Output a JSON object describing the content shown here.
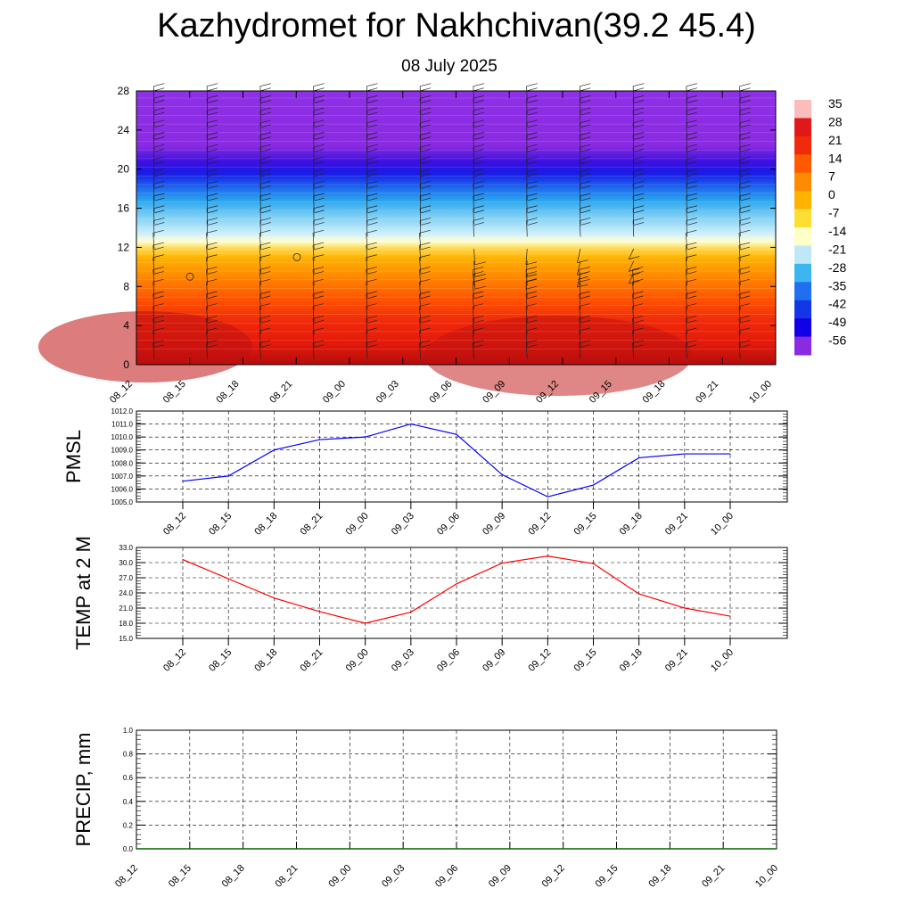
{
  "title": "Kazhydromet for Nakhchivan(39.2 45.4)",
  "subtitle": "08 July 2025",
  "chart_data": [
    {
      "type": "heatmap",
      "description_of_axes": "time vs level",
      "x_ticks": [
        "08_12",
        "08_15",
        "08_18",
        "08_21",
        "09_00",
        "09_03",
        "09_06",
        "09_09",
        "09_12",
        "09_15",
        "09_18",
        "09_21",
        "10_00"
      ],
      "y_ticks": [
        0,
        4,
        8,
        12,
        16,
        20,
        24,
        28
      ],
      "ylim": [
        0,
        28
      ],
      "colorbar_labels": [
        "35",
        "28",
        "21",
        "14",
        "7",
        "0",
        "-7",
        "-14",
        "-21",
        "-28",
        "-35",
        "-42",
        "-49",
        "-56"
      ],
      "colorbar_colors": [
        "#fbbcbc",
        "#e01818",
        "#f02a0a",
        "#ff5a00",
        "#ff8c00",
        "#ffb300",
        "#ffde33",
        "#ffffc8",
        "#bfe8f7",
        "#3cb6f0",
        "#1f6fef",
        "#1436e8",
        "#1200e8",
        "#8a2be2"
      ],
      "colorbar_values": [
        35,
        28,
        21,
        14,
        7,
        0,
        -7,
        -14,
        -21,
        -28,
        -35,
        -42,
        -49,
        -56
      ],
      "wind_barbs": "present"
    },
    {
      "type": "line",
      "ylabel": "PMSL",
      "x": [
        "08_12",
        "08_15",
        "08_18",
        "08_21",
        "09_00",
        "09_03",
        "09_06",
        "09_09",
        "09_12",
        "09_15",
        "09_18",
        "09_21",
        "10_00"
      ],
      "y_ticks": [
        "1005.0",
        "1006.0",
        "1007.0",
        "1008.0",
        "1009.0",
        "1010.0",
        "1011.0",
        "1012.0"
      ],
      "ylim": [
        1005,
        1012
      ],
      "series": [
        {
          "values": [
            1006.6,
            1007.0,
            1009.0,
            1009.8,
            1010.0,
            1011.0,
            1010.2,
            1007.1,
            1005.4,
            1006.3,
            1008.4,
            1008.7,
            1008.7
          ],
          "color": "#0000ff"
        }
      ]
    },
    {
      "type": "line",
      "ylabel": "TEMP at 2 M",
      "x": [
        "08_12",
        "08_15",
        "08_18",
        "08_21",
        "09_00",
        "09_03",
        "09_06",
        "09_09",
        "09_12",
        "09_15",
        "09_18",
        "09_21",
        "10_00"
      ],
      "y_ticks": [
        "15.0",
        "18.0",
        "21.0",
        "24.0",
        "27.0",
        "30.0",
        "33.0"
      ],
      "ylim": [
        15,
        33
      ],
      "series": [
        {
          "values": [
            30.6,
            26.8,
            23.0,
            20.3,
            18.0,
            20.2,
            25.8,
            29.9,
            31.3,
            29.8,
            23.8,
            21.0,
            19.4
          ],
          "color": "#ff0000"
        }
      ]
    },
    {
      "type": "line",
      "ylabel": "PRECIP, mm",
      "x": [
        "08_12",
        "08_15",
        "08_18",
        "08_21",
        "09_00",
        "09_03",
        "09_06",
        "09_09",
        "09_12",
        "09_15",
        "09_18",
        "09_21",
        "10_00"
      ],
      "y_ticks": [
        "0.0",
        "0.2",
        "0.4",
        "0.6",
        "0.8",
        "1.0"
      ],
      "ylim": [
        0,
        1
      ],
      "series": [
        {
          "values": [
            0,
            0,
            0,
            0,
            0,
            0,
            0,
            0,
            0,
            0,
            0,
            0,
            0
          ],
          "color": "#006400"
        }
      ]
    }
  ]
}
